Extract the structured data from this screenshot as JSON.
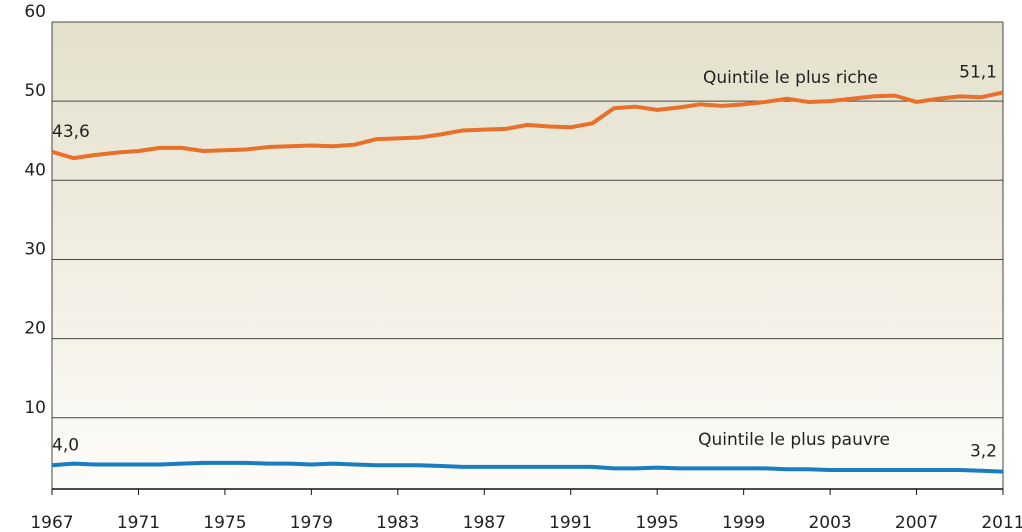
{
  "chart_data": {
    "type": "line",
    "x": [
      1967,
      1968,
      1969,
      1970,
      1971,
      1972,
      1973,
      1974,
      1975,
      1976,
      1977,
      1978,
      1979,
      1980,
      1981,
      1982,
      1983,
      1984,
      1985,
      1986,
      1987,
      1988,
      1989,
      1990,
      1991,
      1992,
      1993,
      1994,
      1995,
      1996,
      1997,
      1998,
      1999,
      2000,
      2001,
      2002,
      2003,
      2004,
      2005,
      2006,
      2007,
      2008,
      2009,
      2010,
      2011
    ],
    "series": [
      {
        "name": "Quintile le plus riche",
        "color": "#e8702a",
        "values": [
          43.6,
          42.8,
          43.2,
          43.5,
          43.7,
          44.1,
          44.1,
          43.7,
          43.8,
          43.9,
          44.2,
          44.3,
          44.4,
          44.3,
          44.5,
          45.2,
          45.3,
          45.4,
          45.8,
          46.3,
          46.4,
          46.5,
          47.0,
          46.8,
          46.7,
          47.2,
          49.1,
          49.3,
          48.9,
          49.2,
          49.6,
          49.4,
          49.6,
          49.9,
          50.3,
          49.9,
          50.0,
          50.3,
          50.6,
          50.7,
          49.9,
          50.3,
          50.6,
          50.5,
          51.1
        ],
        "value_labels": [
          "43,6",
          null,
          null,
          null,
          null,
          null,
          null,
          null,
          null,
          null,
          null,
          null,
          null,
          null,
          null,
          null,
          null,
          null,
          null,
          null,
          null,
          null,
          null,
          null,
          null,
          null,
          null,
          null,
          null,
          null,
          null,
          null,
          null,
          null,
          null,
          null,
          null,
          null,
          null,
          null,
          null,
          null,
          null,
          null,
          "51,1"
        ]
      },
      {
        "name": "Quintile le plus pauvre",
        "color": "#1a7dc0",
        "values": [
          4.0,
          4.2,
          4.1,
          4.1,
          4.1,
          4.1,
          4.2,
          4.3,
          4.3,
          4.3,
          4.2,
          4.2,
          4.1,
          4.2,
          4.1,
          4.0,
          4.0,
          4.0,
          3.9,
          3.8,
          3.8,
          3.8,
          3.8,
          3.8,
          3.8,
          3.8,
          3.6,
          3.6,
          3.7,
          3.6,
          3.6,
          3.6,
          3.6,
          3.6,
          3.5,
          3.5,
          3.4,
          3.4,
          3.4,
          3.4,
          3.4,
          3.4,
          3.4,
          3.3,
          3.2
        ],
        "value_labels": [
          "4,0",
          null,
          null,
          null,
          null,
          null,
          null,
          null,
          null,
          null,
          null,
          null,
          null,
          null,
          null,
          null,
          null,
          null,
          null,
          null,
          null,
          null,
          null,
          null,
          null,
          null,
          null,
          null,
          null,
          null,
          null,
          null,
          null,
          null,
          null,
          null,
          null,
          null,
          null,
          null,
          null,
          null,
          null,
          null,
          "3,2"
        ]
      }
    ],
    "xlim": [
      1967,
      2011
    ],
    "xticks": [
      1967,
      1971,
      1975,
      1979,
      1983,
      1987,
      1991,
      1995,
      1999,
      2003,
      2007,
      2011
    ],
    "ylim": [
      1,
      60
    ],
    "yticks": [
      10,
      20,
      30,
      40,
      50,
      60
    ],
    "grid": true
  }
}
